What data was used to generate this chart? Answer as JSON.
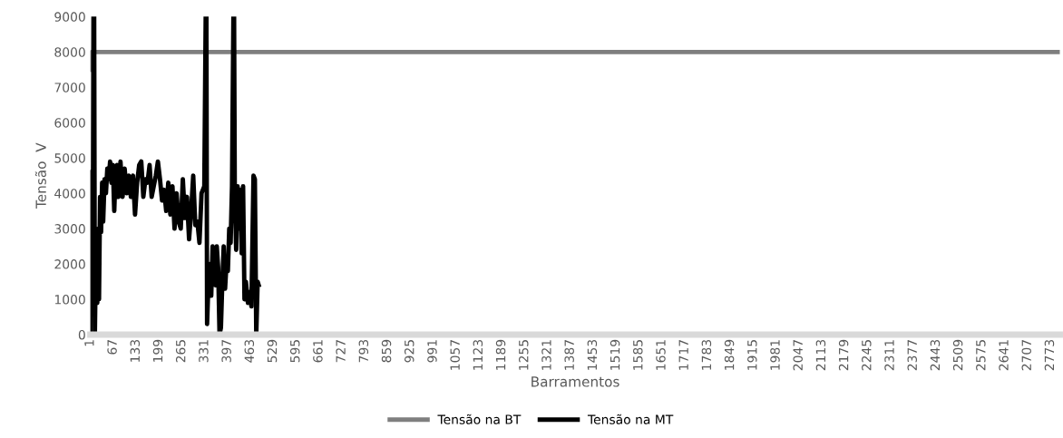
{
  "chart_data": {
    "type": "line",
    "xlabel": "Barramentos",
    "ylabel": "Tensão  V",
    "xlim": [
      1,
      2800
    ],
    "xticks": [
      1,
      67,
      133,
      199,
      265,
      331,
      397,
      463,
      529,
      595,
      661,
      727,
      793,
      859,
      925,
      991,
      1057,
      1123,
      1189,
      1255,
      1321,
      1387,
      1453,
      1519,
      1585,
      1651,
      1717,
      1783,
      1849,
      1915,
      1981,
      2047,
      2113,
      2179,
      2245,
      2311,
      2377,
      2443,
      2509,
      2575,
      2641,
      2707,
      2773
    ],
    "ylim": [
      0,
      9000
    ],
    "yticks": [
      0,
      1000,
      2000,
      3000,
      4000,
      5000,
      6000,
      7000,
      8000,
      9000
    ],
    "grid": false,
    "legend": "bottom",
    "marker": "none",
    "line_style": "solid",
    "series": [
      {
        "name": "Tensão na BT",
        "color": "#7f7f7f",
        "x": [
          1,
          5,
          2800
        ],
        "values": [
          7500,
          8000,
          8000
        ]
      },
      {
        "name": "Tensão na MT",
        "color": "#000000",
        "x": [
          1,
          2,
          4,
          6,
          8,
          10,
          12,
          14,
          16,
          19,
          21,
          24,
          26,
          29,
          32,
          35,
          38,
          42,
          46,
          50,
          54,
          58,
          62,
          66,
          70,
          74,
          78,
          82,
          88,
          94,
          100,
          106,
          112,
          118,
          124,
          130,
          136,
          142,
          148,
          154,
          160,
          166,
          172,
          178,
          184,
          190,
          196,
          202,
          208,
          214,
          220,
          226,
          232,
          238,
          244,
          250,
          256,
          262,
          268,
          274,
          280,
          286,
          292,
          298,
          304,
          310,
          316,
          322,
          330,
          334,
          336,
          338,
          342,
          346,
          350,
          354,
          358,
          362,
          366,
          370,
          374,
          378,
          382,
          386,
          390,
          394,
          398,
          402,
          406,
          410,
          414,
          416,
          418,
          422,
          426,
          430,
          434,
          438,
          442,
          446,
          450,
          456,
          460,
          466,
          472,
          476,
          480,
          484,
          487
        ],
        "values": [
          0,
          4600,
          1500,
          2500,
          1600,
          9000,
          9000,
          0,
          1500,
          2000,
          900,
          3000,
          1000,
          3900,
          2900,
          4300,
          3200,
          4400,
          4000,
          4700,
          4400,
          4900,
          4300,
          4800,
          3500,
          4700,
          4800,
          3900,
          4900,
          3900,
          4700,
          4000,
          4500,
          3900,
          4500,
          3400,
          4300,
          4800,
          4900,
          3900,
          4400,
          4300,
          4800,
          3900,
          4200,
          4500,
          4900,
          4400,
          3800,
          4100,
          3500,
          4300,
          3400,
          4200,
          3000,
          4000,
          3200,
          3000,
          4400,
          3300,
          3900,
          2700,
          3500,
          4500,
          3100,
          3200,
          2600,
          4000,
          4200,
          9000,
          9000,
          300,
          1500,
          2000,
          1100,
          2500,
          1700,
          1400,
          2500,
          1900,
          0,
          200,
          1500,
          2500,
          1300,
          2000,
          1800,
          3000,
          2600,
          4200,
          9000,
          9000,
          4100,
          2400,
          4200,
          3000,
          4100,
          2300,
          4200,
          1000,
          1500,
          900,
          1200,
          800,
          4500,
          4400,
          0,
          1500,
          1400
        ]
      }
    ]
  }
}
